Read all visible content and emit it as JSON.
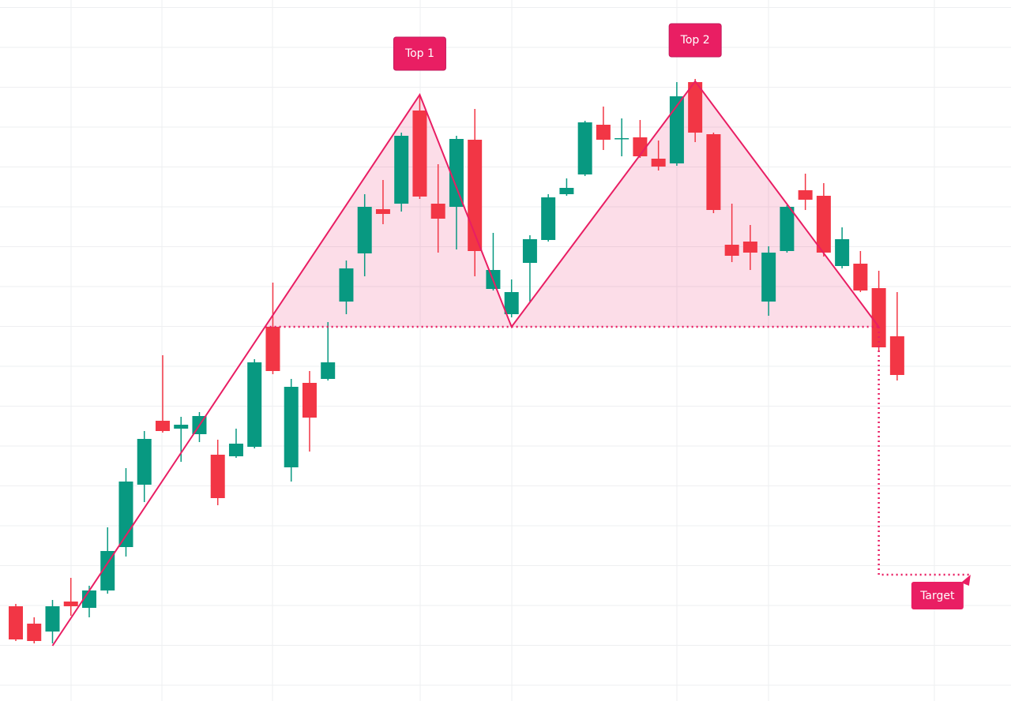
{
  "chart_data": {
    "type": "candlestick",
    "xlim": [
      -0.86,
      54.2
    ],
    "ylim": [
      0,
      888
    ],
    "up_color": "#089981",
    "down_color": "#f23645",
    "open": [
      120,
      98,
      88,
      126,
      118,
      140,
      195,
      274,
      355,
      345,
      338,
      312,
      310,
      322,
      474,
      296,
      403,
      408,
      506,
      567,
      623,
      630,
      748,
      630,
      626,
      711,
      522,
      490,
      555,
      584,
      642,
      667,
      730,
      712,
      714,
      687,
      681,
      784,
      718,
      578,
      582,
      506,
      570,
      647,
      640,
      551,
      554,
      523,
      462
    ],
    "high": [
      123,
      106,
      128,
      156,
      146,
      220,
      295,
      342,
      438,
      360,
      366,
      331,
      345,
      433,
      530,
      408,
      418,
      480,
      558,
      642,
      660,
      720,
      768,
      680,
      716,
      750,
      593,
      534,
      590,
      642,
      662,
      735,
      753,
      738,
      736,
      710,
      784,
      788,
      720,
      630,
      603,
      576,
      628,
      668,
      656,
      600,
      570,
      545,
      518
    ],
    "low": [
      76,
      73,
      73,
      108,
      106,
      136,
      183,
      252,
      340,
      303,
      328,
      248,
      308,
      320,
      414,
      278,
      316,
      406,
      490,
      538,
      604,
      620,
      636,
      568,
      572,
      538,
      520,
      486,
      506,
      582,
      640,
      665,
      698,
      690,
      688,
      672,
      678,
      708,
      618,
      556,
      546,
      488,
      568,
      622,
      563,
      548,
      518,
      444,
      406
    ],
    "close": [
      78,
      76,
      120,
      120,
      140,
      190,
      278,
      332,
      342,
      350,
      361,
      257,
      326,
      429,
      418,
      398,
      359,
      429,
      548,
      626,
      617,
      716,
      639,
      611,
      712,
      570,
      546,
      518,
      585,
      638,
      650,
      733,
      711,
      713,
      690,
      677,
      766,
      720,
      622,
      564,
      568,
      568,
      626,
      635,
      568,
      585,
      520,
      448,
      413
    ],
    "pattern": {
      "color": "#e91e63",
      "points": [
        {
          "x": 2,
          "y": 70
        },
        {
          "x": 22,
          "y": 768
        },
        {
          "x": 27,
          "y": 474
        },
        {
          "x": 37,
          "y": 785
        },
        {
          "x": 47,
          "y": 474
        }
      ],
      "neckline": 474,
      "target": 160,
      "target_x": 52,
      "labels": [
        "Top 1",
        "Top 2",
        "Target"
      ]
    }
  }
}
